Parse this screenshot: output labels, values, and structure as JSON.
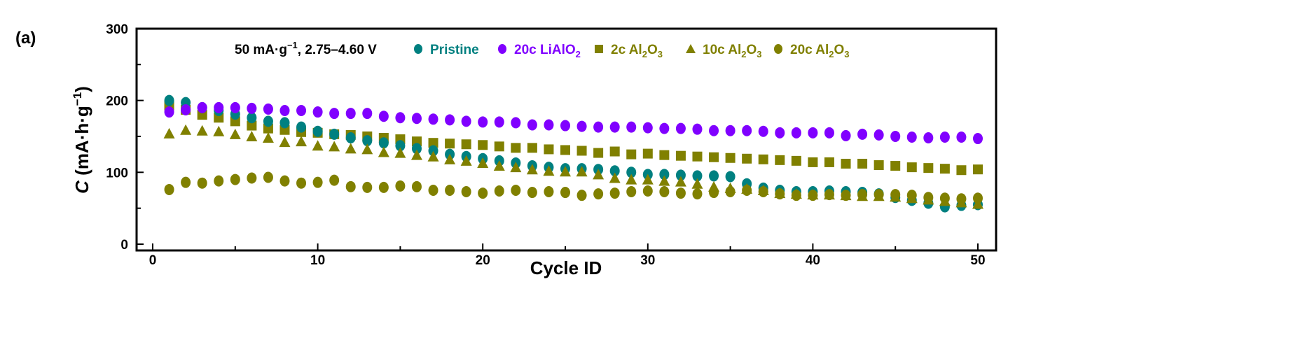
{
  "panel_label": "(a)",
  "chart_data": {
    "type": "scatter",
    "title": "",
    "xlabel": "Cycle ID",
    "ylabel_italic": "C",
    "ylabel_rest": " (mA·h·g",
    "ylabel_sup": "−1",
    "ylabel_end": ")",
    "xlim": [
      -1,
      51.5
    ],
    "ylim": [
      -9,
      300
    ],
    "xticks": [
      0,
      10,
      20,
      30,
      40,
      50
    ],
    "yticks": [
      0,
      100,
      200,
      300
    ],
    "grid": false,
    "legend_placement": "top",
    "condition_label": "50 mA·g",
    "condition_sup": "−1",
    "condition_rest": ", 2.75–4.60 V",
    "x": [
      1,
      2,
      3,
      4,
      5,
      6,
      7,
      8,
      9,
      10,
      11,
      12,
      13,
      14,
      15,
      16,
      17,
      18,
      19,
      20,
      21,
      22,
      23,
      24,
      25,
      26,
      27,
      28,
      29,
      30,
      31,
      32,
      33,
      34,
      35,
      36,
      37,
      38,
      39,
      40,
      41,
      42,
      43,
      44,
      45,
      46,
      47,
      48,
      49,
      50
    ],
    "series": [
      {
        "name": "Pristine",
        "name_sub": "",
        "name_end": "",
        "marker": "circle",
        "color": "#008080",
        "values": [
          200,
          197,
          190,
          186,
          181,
          176,
          171,
          169,
          163,
          157,
          153,
          148,
          144,
          141,
          137,
          133,
          130,
          125,
          122,
          119,
          116,
          113,
          109,
          107,
          105,
          105,
          104,
          102,
          100,
          97,
          97,
          96,
          95,
          95,
          94,
          84,
          78,
          75,
          73,
          73,
          74,
          73,
          72,
          70,
          65,
          61,
          57,
          52,
          54,
          55
        ]
      },
      {
        "name": "20c LiAlO",
        "name_sub": "2",
        "name_end": "",
        "marker": "circle",
        "color": "#8000ff",
        "values": [
          184,
          187,
          190,
          190,
          190,
          189,
          188,
          186,
          186,
          184,
          182,
          182,
          182,
          178,
          176,
          175,
          174,
          173,
          171,
          170,
          170,
          169,
          166,
          166,
          165,
          164,
          163,
          163,
          163,
          162,
          161,
          161,
          160,
          158,
          158,
          158,
          157,
          155,
          155,
          155,
          155,
          151,
          153,
          152,
          150,
          149,
          148,
          149,
          149,
          147
        ]
      },
      {
        "name": "2c Al",
        "name_sub": "2",
        "name_end": "O",
        "name_sub2": "3",
        "marker": "square",
        "color": "#808000",
        "values": [
          193,
          187,
          180,
          176,
          171,
          165,
          161,
          159,
          156,
          155,
          153,
          152,
          150,
          148,
          146,
          143,
          141,
          140,
          139,
          138,
          136,
          134,
          134,
          132,
          131,
          130,
          127,
          129,
          125,
          126,
          124,
          123,
          122,
          121,
          120,
          119,
          118,
          117,
          116,
          114,
          114,
          112,
          112,
          110,
          109,
          107,
          106,
          105,
          103,
          104
        ]
      },
      {
        "name": "10c Al",
        "name_sub": "2",
        "name_end": "O",
        "name_sub2": "3",
        "marker": "triangle",
        "color": "#808000",
        "values": [
          154,
          159,
          158,
          157,
          153,
          150,
          148,
          142,
          143,
          137,
          136,
          133,
          132,
          128,
          127,
          124,
          122,
          118,
          116,
          113,
          109,
          107,
          104,
          102,
          101,
          101,
          97,
          92,
          90,
          90,
          88,
          87,
          84,
          80,
          78,
          77,
          75,
          71,
          70,
          69,
          69,
          68,
          67,
          67,
          66,
          64,
          62,
          60,
          58,
          56
        ]
      },
      {
        "name": "20c Al",
        "name_sub": "2",
        "name_end": "O",
        "name_sub2": "3",
        "marker": "circle",
        "color": "#808000",
        "values": [
          76,
          86,
          85,
          88,
          90,
          92,
          93,
          88,
          85,
          86,
          89,
          80,
          79,
          79,
          81,
          80,
          75,
          75,
          73,
          71,
          74,
          75,
          72,
          73,
          72,
          68,
          70,
          71,
          73,
          74,
          73,
          71,
          70,
          72,
          73,
          75,
          73,
          70,
          68,
          68,
          69,
          68,
          69,
          69,
          69,
          68,
          65,
          64,
          63,
          64
        ]
      }
    ]
  }
}
